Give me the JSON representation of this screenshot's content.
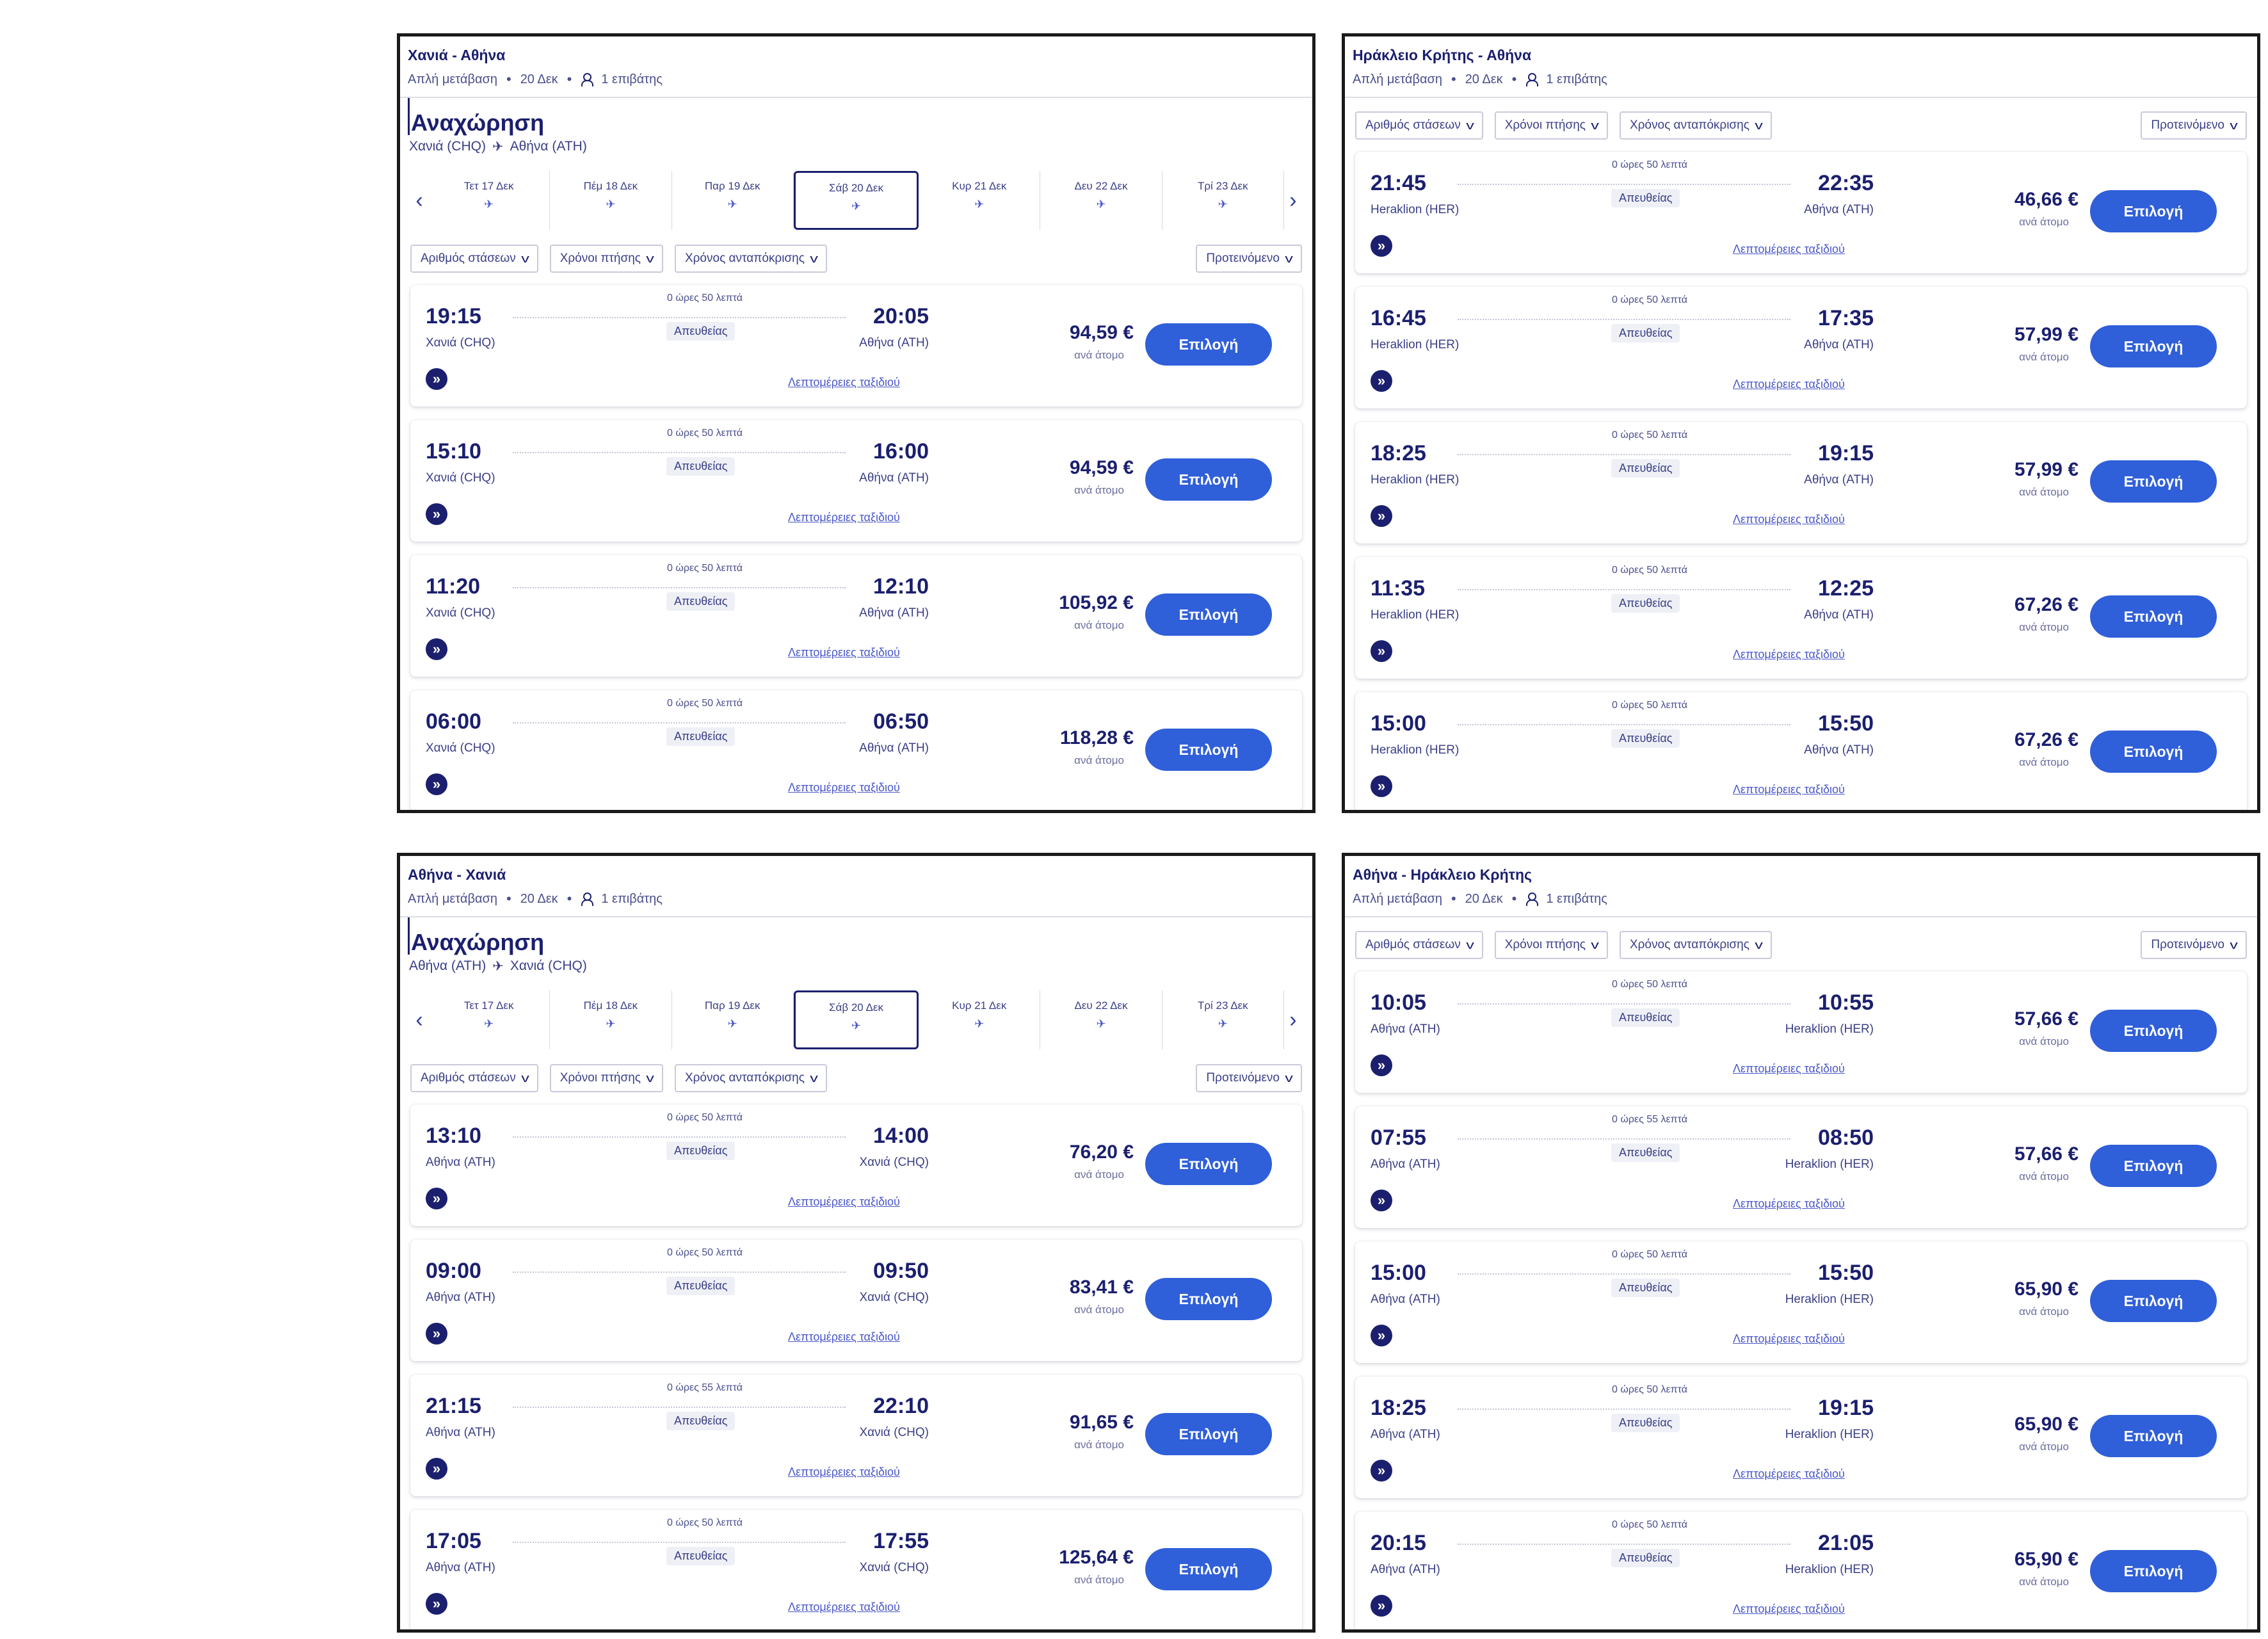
{
  "common": {
    "trip_type": "Απλή μετάβαση",
    "date": "20 Δεκ",
    "passengers": "1 επιβάτης",
    "heading": "Αναχώρηση",
    "filters": {
      "stops": "Αριθμός στάσεων",
      "flight_times": "Χρόνοι πτήσης",
      "response_time": "Χρόνος ανταπόκρισης",
      "sort": "Προτεινόμενο"
    },
    "direct": "Απευθείας",
    "details": "Λεπτομέρειες ταξιδιού",
    "per_person": "ανά άτομο",
    "select": "Επιλογή",
    "dates": [
      "Τετ 17 Δεκ",
      "Πέμ 18 Δεκ",
      "Παρ 19 Δεκ",
      "Σάβ 20 Δεκ",
      "Κυρ 21 Δεκ",
      "Δευ 22 Δεκ",
      "Τρί 23 Δεκ"
    ]
  },
  "panels": {
    "tl": {
      "title": "Χανιά - Αθήνα",
      "route_from": "Χανιά (CHQ)",
      "route_to": "Αθήνα (ATH)",
      "flights": [
        {
          "dep": "19:15",
          "dep_ap": "Χανιά (CHQ)",
          "arr": "20:05",
          "arr_ap": "Αθήνα (ATH)",
          "dur": "0 ώρες 50 λεπτά",
          "price": "94,59 €"
        },
        {
          "dep": "15:10",
          "dep_ap": "Χανιά (CHQ)",
          "arr": "16:00",
          "arr_ap": "Αθήνα (ATH)",
          "dur": "0 ώρες 50 λεπτά",
          "price": "94,59 €"
        },
        {
          "dep": "11:20",
          "dep_ap": "Χανιά (CHQ)",
          "arr": "12:10",
          "arr_ap": "Αθήνα (ATH)",
          "dur": "0 ώρες 50 λεπτά",
          "price": "105,92 €"
        },
        {
          "dep": "06:00",
          "dep_ap": "Χανιά (CHQ)",
          "arr": "06:50",
          "arr_ap": "Αθήνα (ATH)",
          "dur": "0 ώρες 50 λεπτά",
          "price": "118,28 €"
        }
      ]
    },
    "tr": {
      "title": "Ηράκλειο Κρήτης - Αθήνα",
      "flights": [
        {
          "dep": "21:45",
          "dep_ap": "Heraklion (HER)",
          "arr": "22:35",
          "arr_ap": "Αθήνα (ATH)",
          "dur": "0 ώρες 50 λεπτά",
          "price": "46,66 €"
        },
        {
          "dep": "16:45",
          "dep_ap": "Heraklion (HER)",
          "arr": "17:35",
          "arr_ap": "Αθήνα (ATH)",
          "dur": "0 ώρες 50 λεπτά",
          "price": "57,99 €"
        },
        {
          "dep": "18:25",
          "dep_ap": "Heraklion (HER)",
          "arr": "19:15",
          "arr_ap": "Αθήνα (ATH)",
          "dur": "0 ώρες 50 λεπτά",
          "price": "57,99 €"
        },
        {
          "dep": "11:35",
          "dep_ap": "Heraklion (HER)",
          "arr": "12:25",
          "arr_ap": "Αθήνα (ATH)",
          "dur": "0 ώρες 50 λεπτά",
          "price": "67,26 €"
        },
        {
          "dep": "15:00",
          "dep_ap": "Heraklion (HER)",
          "arr": "15:50",
          "arr_ap": "Αθήνα (ATH)",
          "dur": "0 ώρες 50 λεπτά",
          "price": "67,26 €"
        }
      ]
    },
    "bl": {
      "title": "Αθήνα - Χανιά",
      "route_from": "Αθήνα (ATH)",
      "route_to": "Χανιά (CHQ)",
      "flights": [
        {
          "dep": "13:10",
          "dep_ap": "Αθήνα (ATH)",
          "arr": "14:00",
          "arr_ap": "Χανιά (CHQ)",
          "dur": "0 ώρες 50 λεπτά",
          "price": "76,20 €"
        },
        {
          "dep": "09:00",
          "dep_ap": "Αθήνα (ATH)",
          "arr": "09:50",
          "arr_ap": "Χανιά (CHQ)",
          "dur": "0 ώρες 50 λεπτά",
          "price": "83,41 €"
        },
        {
          "dep": "21:15",
          "dep_ap": "Αθήνα (ATH)",
          "arr": "22:10",
          "arr_ap": "Χανιά (CHQ)",
          "dur": "0 ώρες 55 λεπτά",
          "price": "91,65 €"
        },
        {
          "dep": "17:05",
          "dep_ap": "Αθήνα (ATH)",
          "arr": "17:55",
          "arr_ap": "Χανιά (CHQ)",
          "dur": "0 ώρες 50 λεπτά",
          "price": "125,64 €"
        }
      ]
    },
    "br": {
      "title": "Αθήνα - Ηράκλειο Κρήτης",
      "flights": [
        {
          "dep": "10:05",
          "dep_ap": "Αθήνα (ATH)",
          "arr": "10:55",
          "arr_ap": "Heraklion (HER)",
          "dur": "0 ώρες 50 λεπτά",
          "price": "57,66 €"
        },
        {
          "dep": "07:55",
          "dep_ap": "Αθήνα (ATH)",
          "arr": "08:50",
          "arr_ap": "Heraklion (HER)",
          "dur": "0 ώρες 55 λεπτά",
          "price": "57,66 €"
        },
        {
          "dep": "15:00",
          "dep_ap": "Αθήνα (ATH)",
          "arr": "15:50",
          "arr_ap": "Heraklion (HER)",
          "dur": "0 ώρες 50 λεπτά",
          "price": "65,90 €"
        },
        {
          "dep": "18:25",
          "dep_ap": "Αθήνα (ATH)",
          "arr": "19:15",
          "arr_ap": "Heraklion (HER)",
          "dur": "0 ώρες 50 λεπτά",
          "price": "65,90 €"
        },
        {
          "dep": "20:15",
          "dep_ap": "Αθήνα (ATH)",
          "arr": "21:05",
          "arr_ap": "Heraklion (HER)",
          "dur": "0 ώρες 50 λεπτά",
          "price": "65,90 €"
        }
      ]
    }
  },
  "colors": {
    "navy": "#1b1f6e",
    "button_blue": "#2f5fd9",
    "link_blue": "#4a57c8"
  }
}
